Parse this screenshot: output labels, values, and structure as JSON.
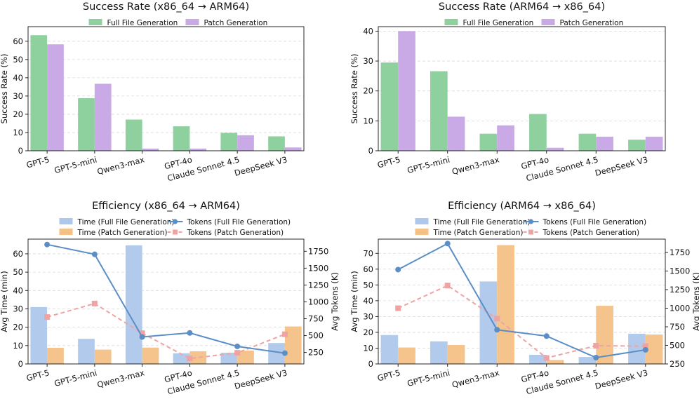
{
  "colors": {
    "full": "#8ed19e",
    "patch": "#c9a9e6",
    "time_full": "#aec8eb",
    "time_patch": "#f4c186",
    "tokens_full": "#5b8ec6",
    "tokens_patch": "#f0a3a3"
  },
  "chart_data": [
    {
      "type": "bar",
      "title": "Success Rate (x86_64 → ARM64)",
      "categories": [
        "GPT-5",
        "GPT-5-mini",
        "Qwen3-max",
        "GPT-4o",
        "Claude Sonnet 4.5",
        "DeepSeek V3"
      ],
      "series": [
        {
          "name": "Full File Generation",
          "values": [
            63.3,
            28.8,
            17.1,
            13.4,
            9.8,
            7.9
          ]
        },
        {
          "name": "Patch Generation",
          "values": [
            58.3,
            36.7,
            1.2,
            1.2,
            8.5,
            1.8
          ]
        }
      ],
      "ylabel": "Success Rate (%)",
      "ylim": [
        0,
        68
      ],
      "yticks": [
        0,
        10,
        20,
        30,
        40,
        50,
        60
      ],
      "legend": "top-center",
      "grid": true
    },
    {
      "type": "bar",
      "title": "Success Rate (ARM64 → x86_64)",
      "categories": [
        "GPT-5",
        "GPT-5-mini",
        "Qwen3-max",
        "GPT-4o",
        "Claude Sonnet 4.5",
        "DeepSeek V3"
      ],
      "series": [
        {
          "name": "Full File Generation",
          "values": [
            29.5,
            26.6,
            5.7,
            12.3,
            5.7,
            3.7
          ]
        },
        {
          "name": "Patch Generation",
          "values": [
            40.0,
            11.4,
            8.5,
            1.0,
            4.7,
            4.7
          ]
        }
      ],
      "ylabel": "Success Rate (%)",
      "ylim": [
        0,
        41.5
      ],
      "yticks": [
        0,
        10,
        20,
        30,
        40
      ],
      "legend": "top-center",
      "grid": true
    },
    {
      "type": "bar",
      "title": "Efficiency (x86_64 → ARM64)",
      "categories": [
        "GPT-5",
        "GPT-5-mini",
        "Qwen3-max",
        "GPT-4o",
        "Claude Sonnet 4.5",
        "DeepSeek V3"
      ],
      "series": [
        {
          "name": "Time (Full File Generation)",
          "values": [
            31.0,
            13.7,
            64.6,
            5.8,
            6.1,
            11.4
          ]
        },
        {
          "name": "Time (Patch Generation)",
          "values": [
            8.8,
            7.8,
            8.9,
            6.9,
            7.3,
            20.4
          ]
        }
      ],
      "line_series": [
        {
          "name": "Tokens (Full File Generation)",
          "values": [
            1850,
            1705,
            480,
            540,
            340,
            240
          ]
        },
        {
          "name": "Tokens (Patch Generation)",
          "values": [
            775,
            975,
            535,
            160,
            245,
            520
          ]
        }
      ],
      "ylabel": "Avg Time (min)",
      "ylim": [
        0,
        68
      ],
      "yticks": [
        0,
        10,
        20,
        30,
        40,
        50,
        60
      ],
      "y2label": "Avg Tokens (K)",
      "y2lim": [
        80,
        1930
      ],
      "y2ticks": [
        250,
        500,
        750,
        1000,
        1250,
        1500,
        1750
      ],
      "legend": "top-center",
      "grid": true
    },
    {
      "type": "bar",
      "title": "Efficiency (ARM64 → x86_64)",
      "categories": [
        "GPT-5",
        "GPT-5-mini",
        "Qwen3-max",
        "GPT-4o",
        "Claude Sonnet 4.5",
        "DeepSeek V3"
      ],
      "series": [
        {
          "name": "Time (Full File Generation)",
          "values": [
            18.3,
            14.3,
            52.2,
            5.8,
            4.4,
            19.1
          ]
        },
        {
          "name": "Time (Patch Generation)",
          "values": [
            10.4,
            12.0,
            75.2,
            2.5,
            36.8,
            18.6
          ]
        }
      ],
      "line_series": [
        {
          "name": "Tokens (Full File Generation)",
          "values": [
            1520,
            1870,
            710,
            625,
            335,
            440
          ]
        },
        {
          "name": "Tokens (Patch Generation)",
          "values": [
            1000,
            1305,
            860,
            330,
            495,
            490
          ]
        }
      ],
      "ylabel": "Avg Time (min)",
      "ylim": [
        0,
        79
      ],
      "yticks": [
        0,
        10,
        20,
        30,
        40,
        50,
        60,
        70
      ],
      "y2label": "Avg Tokens (K)",
      "y2lim": [
        250,
        1930
      ],
      "y2ticks": [
        250,
        500,
        750,
        1000,
        1250,
        1500,
        1750
      ],
      "legend": "top-center",
      "grid": true
    }
  ]
}
